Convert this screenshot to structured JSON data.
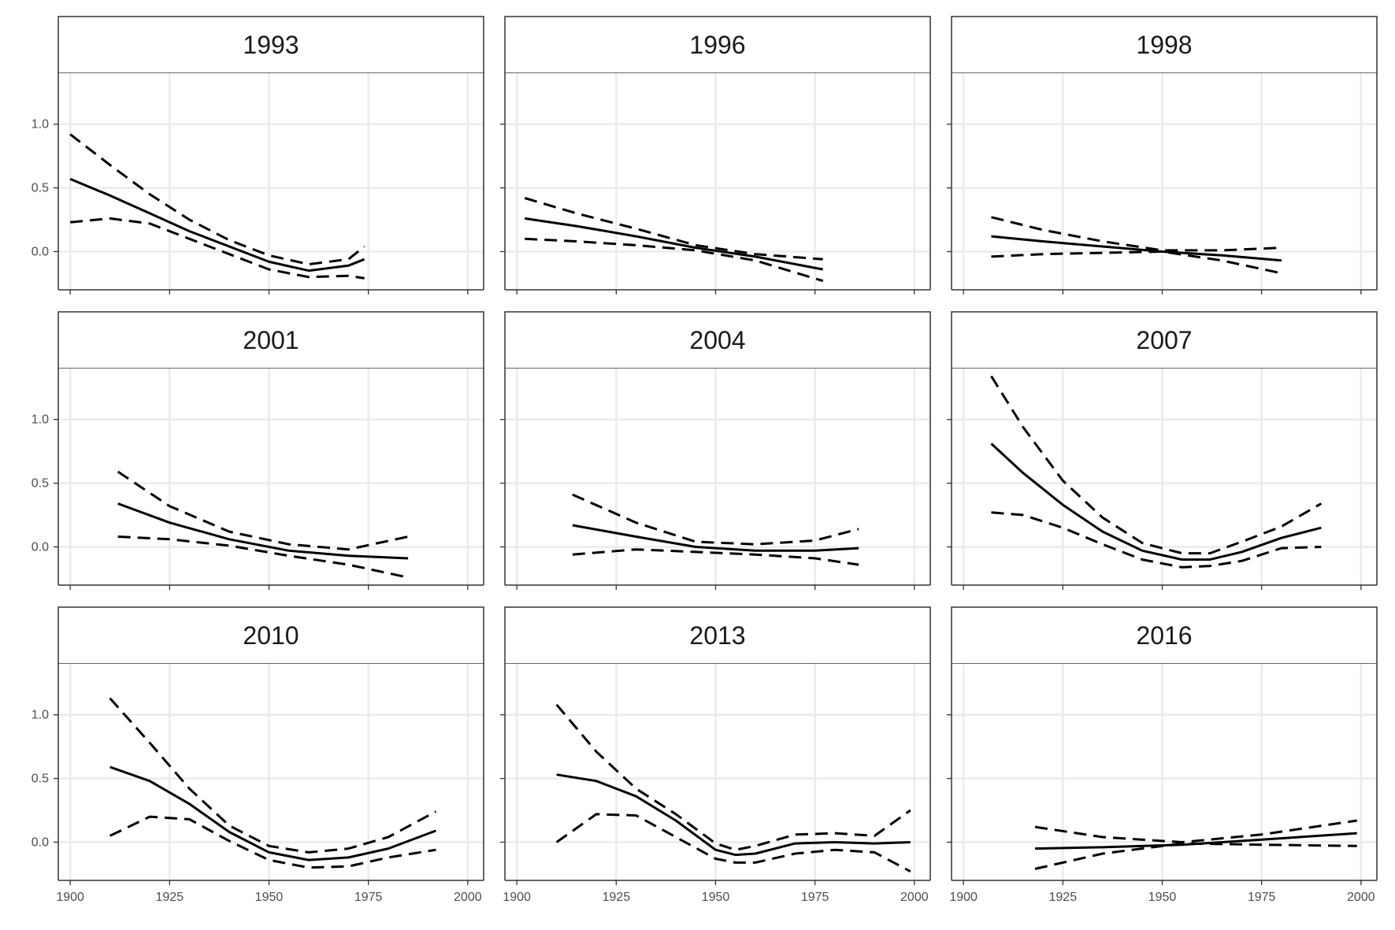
{
  "chart_data": {
    "type": "line",
    "layout": "facet-grid-3x3",
    "x_range": [
      1897,
      2004
    ],
    "y_range": [
      -0.3,
      1.4
    ],
    "x_ticks": [
      1900,
      1925,
      1950,
      1975,
      2000
    ],
    "x_tick_labels": [
      "1900",
      "1925",
      "1950",
      "1975",
      "2000"
    ],
    "y_ticks": [
      0.0,
      0.5,
      1.0
    ],
    "y_tick_labels": [
      "0.0",
      "0.5",
      "1.0"
    ],
    "grid": true,
    "colors": {
      "line": "#000000",
      "grid": "#ebebeb",
      "strip_fill": "#ffffff",
      "border": "#333333"
    },
    "line_styles": {
      "estimate": "solid",
      "lower": "dashed",
      "upper": "dashed"
    },
    "panels": [
      {
        "title": "1993",
        "x": [
          1900,
          1910,
          1920,
          1930,
          1940,
          1950,
          1960,
          1970,
          1974
        ],
        "estimate": [
          0.57,
          0.44,
          0.3,
          0.16,
          0.04,
          -0.08,
          -0.15,
          -0.11,
          -0.06
        ],
        "upper": [
          0.92,
          0.68,
          0.45,
          0.25,
          0.09,
          -0.03,
          -0.1,
          -0.06,
          0.04
        ],
        "lower": [
          0.23,
          0.26,
          0.22,
          0.1,
          -0.02,
          -0.14,
          -0.2,
          -0.19,
          -0.21
        ]
      },
      {
        "title": "1996",
        "x": [
          1902,
          1915,
          1930,
          1945,
          1960,
          1977
        ],
        "estimate": [
          0.26,
          0.2,
          0.12,
          0.03,
          -0.04,
          -0.14
        ],
        "upper": [
          0.42,
          0.3,
          0.18,
          0.05,
          -0.02,
          -0.06
        ],
        "lower": [
          0.1,
          0.08,
          0.05,
          0.01,
          -0.07,
          -0.23
        ]
      },
      {
        "title": "1998",
        "x": [
          1907,
          1920,
          1935,
          1950,
          1965,
          1980
        ],
        "estimate": [
          0.12,
          0.08,
          0.04,
          0.0,
          -0.03,
          -0.07
        ],
        "upper": [
          0.27,
          0.17,
          0.08,
          0.01,
          0.01,
          0.03
        ],
        "lower": [
          -0.04,
          -0.02,
          -0.01,
          0.0,
          -0.07,
          -0.17
        ]
      },
      {
        "title": "2001",
        "x": [
          1912,
          1925,
          1940,
          1955,
          1970,
          1985
        ],
        "estimate": [
          0.34,
          0.19,
          0.06,
          -0.03,
          -0.07,
          -0.09
        ],
        "upper": [
          0.59,
          0.32,
          0.12,
          0.02,
          -0.02,
          0.08
        ],
        "lower": [
          0.08,
          0.06,
          0.01,
          -0.07,
          -0.14,
          -0.24
        ]
      },
      {
        "title": "2004",
        "x": [
          1914,
          1930,
          1945,
          1960,
          1975,
          1986
        ],
        "estimate": [
          0.17,
          0.08,
          0.0,
          -0.03,
          -0.03,
          -0.01
        ],
        "upper": [
          0.41,
          0.19,
          0.04,
          0.02,
          0.05,
          0.14
        ],
        "lower": [
          -0.06,
          -0.02,
          -0.04,
          -0.06,
          -0.09,
          -0.14
        ]
      },
      {
        "title": "2007",
        "x": [
          1907,
          1915,
          1925,
          1935,
          1945,
          1955,
          1962,
          1970,
          1980,
          1990
        ],
        "estimate": [
          0.81,
          0.58,
          0.33,
          0.12,
          -0.03,
          -0.1,
          -0.1,
          -0.04,
          0.07,
          0.15
        ],
        "upper": [
          1.34,
          0.94,
          0.52,
          0.23,
          0.03,
          -0.05,
          -0.05,
          0.04,
          0.16,
          0.34
        ],
        "lower": [
          0.27,
          0.25,
          0.15,
          0.02,
          -0.1,
          -0.16,
          -0.15,
          -0.11,
          -0.01,
          0.0
        ]
      },
      {
        "title": "2010",
        "x": [
          1910,
          1920,
          1930,
          1940,
          1950,
          1960,
          1970,
          1980,
          1992
        ],
        "estimate": [
          0.59,
          0.48,
          0.3,
          0.08,
          -0.08,
          -0.14,
          -0.12,
          -0.05,
          0.09
        ],
        "upper": [
          1.13,
          0.78,
          0.42,
          0.13,
          -0.03,
          -0.08,
          -0.05,
          0.04,
          0.24
        ],
        "lower": [
          0.05,
          0.2,
          0.18,
          0.01,
          -0.14,
          -0.2,
          -0.19,
          -0.12,
          -0.06
        ]
      },
      {
        "title": "2013",
        "x": [
          1910,
          1920,
          1930,
          1940,
          1950,
          1955,
          1960,
          1970,
          1980,
          1990,
          1999
        ],
        "estimate": [
          0.53,
          0.48,
          0.36,
          0.17,
          -0.06,
          -0.1,
          -0.09,
          -0.01,
          0.0,
          -0.01,
          0.0
        ],
        "upper": [
          1.08,
          0.71,
          0.42,
          0.22,
          -0.01,
          -0.06,
          -0.03,
          0.06,
          0.07,
          0.05,
          0.25
        ],
        "lower": [
          0.0,
          0.22,
          0.21,
          0.04,
          -0.13,
          -0.16,
          -0.16,
          -0.09,
          -0.06,
          -0.08,
          -0.23
        ]
      },
      {
        "title": "2016",
        "x": [
          1918,
          1935,
          1955,
          1975,
          1999
        ],
        "estimate": [
          -0.05,
          -0.04,
          -0.02,
          0.02,
          0.07
        ],
        "upper": [
          0.12,
          0.04,
          0.0,
          0.06,
          0.17
        ],
        "lower": [
          -0.21,
          -0.09,
          -0.01,
          -0.02,
          -0.03
        ]
      }
    ]
  }
}
